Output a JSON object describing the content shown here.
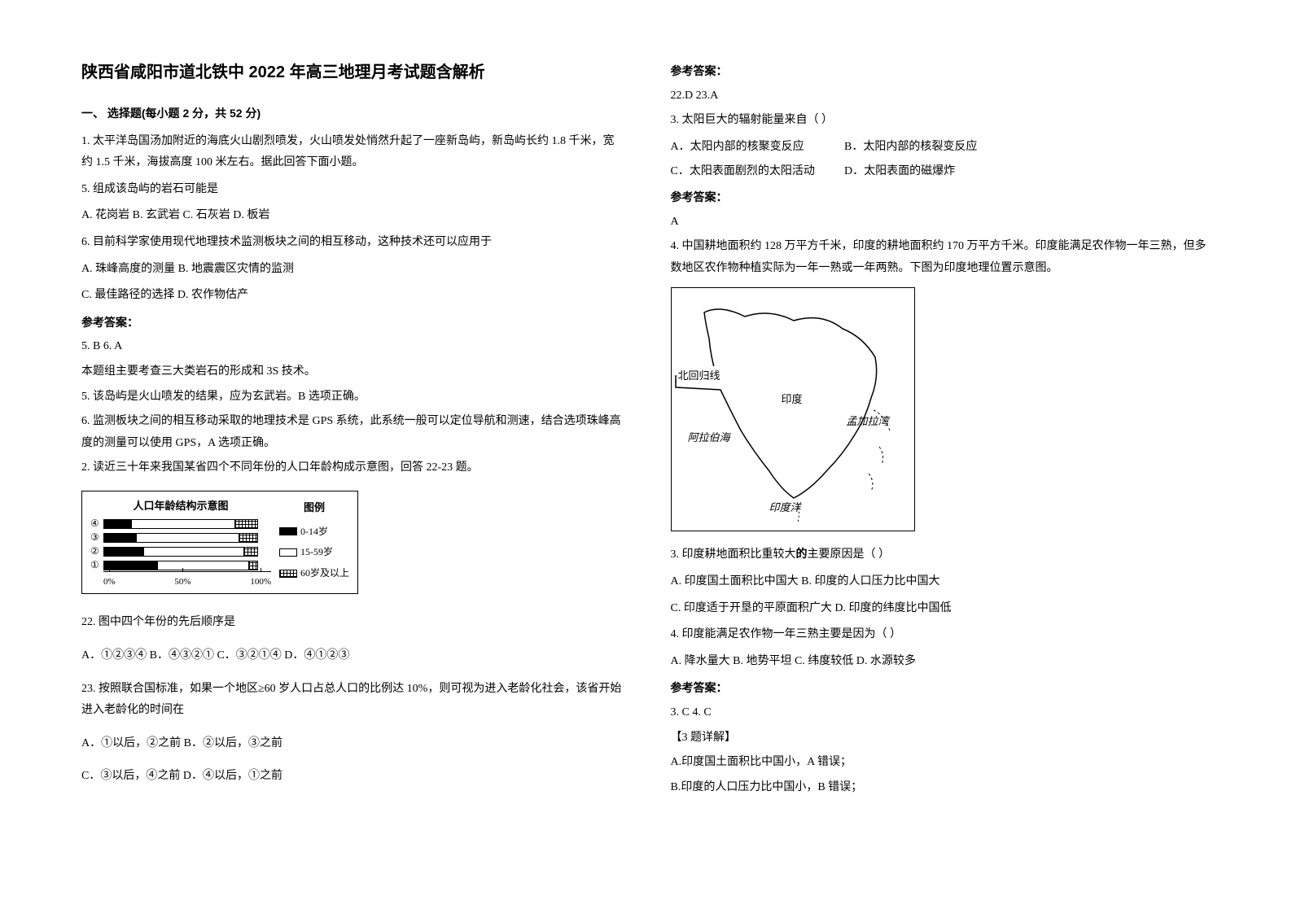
{
  "title": "陕西省咸阳市道北铁中 2022 年高三地理月考试题含解析",
  "section1": "一、 选择题(每小题 2 分，共 52 分)",
  "q1": {
    "stem": "1. 太平洋岛国汤加附近的海底火山剧烈喷发，火山喷发处悄然升起了一座新岛屿，新岛屿长约 1.8 千米，宽约 1.5 千米，海拔高度 100 米左右。据此回答下面小题。",
    "q5": "5.  组成该岛屿的岩石可能是",
    "q5_opts": "A. 花岗岩         B. 玄武岩         C. 石灰岩         D. 板岩",
    "q6": "6.  目前科学家使用现代地理技术监测板块之间的相互移动，这种技术还可以应用于",
    "q6a": "A. 珠峰高度的测量        B. 地震震区灾情的监测",
    "q6b": "C. 最佳路径的选择        D. 农作物估产",
    "ans_label": "参考答案：",
    "ans": "5. B        6. A",
    "exp1": "本题组主要考查三大类岩石的形成和 3S 技术。",
    "exp2": "5.  该岛屿是火山喷发的结果，应为玄武岩。B 选项正确。",
    "exp3": "6.  监测板块之间的相互移动采取的地理技术是 GPS 系统，此系统一般可以定位导航和测速，结合选项珠峰高度的测量可以使用 GPS，A 选项正确。"
  },
  "q2": {
    "stem": "2. 读近三十年来我国某省四个不同年份的人口年龄构成示意图，回答 22-23 题。",
    "chart": {
      "title": "人口年龄结构示意图",
      "legend_title": "图例",
      "legend": [
        "0-14岁",
        "15-59岁",
        "60岁及以上"
      ],
      "rows": [
        "④",
        "③",
        "②",
        "①"
      ],
      "axis": [
        "0%",
        "50%",
        "100%"
      ],
      "bars": [
        {
          "a": 18,
          "b": 67,
          "c": 15
        },
        {
          "a": 21,
          "b": 67,
          "c": 12
        },
        {
          "a": 26,
          "b": 65,
          "c": 9
        },
        {
          "a": 35,
          "b": 59,
          "c": 6
        }
      ],
      "colors": {
        "a": "#000000",
        "b": "#ffffff",
        "c_grid": "#000000",
        "border": "#000000"
      }
    },
    "q22": "22. 图中四个年份的先后顺序是",
    "q22_opts": "A．①②③④ B．④③②①    C．③②①④    D．④①②③",
    "q23": "23. 按照联合国标准，如果一个地区≥60 岁人口占总人口的比例达 10%，则可视为进入老龄化社会，该省开始进入老龄化的时间在",
    "q23a": "A．①以后，②之前          B．②以后，③之前",
    "q23b": "C．③以后，④之前          D．④以后，①之前"
  },
  "right": {
    "ans_label": "参考答案：",
    "a12": "22.D    23.A",
    "q3": {
      "stem": "3. 太阳巨大的辐射能量来自（          ）",
      "a": "A．太阳内部的核聚变反应",
      "b": "B．太阳内部的核裂变反应",
      "c": "C．太阳表面剧烈的太阳活动",
      "d": "D．太阳表面的磁爆炸",
      "ans": "A"
    },
    "q4": {
      "stem": "4. 中国耕地面积约 128 万平方千米，印度的耕地面积约 170 万平方千米。印度能满足农作物一年三熟，但多数地区农作物种植实际为一年一熟或一年两熟。下图为印度地理位置示意图。",
      "map": {
        "labels": {
          "tropic": "北回归线",
          "india": "印度",
          "bengal": "孟加拉湾",
          "arabian": "阿拉伯海",
          "ocean": "印度洋"
        }
      },
      "q3b": "3.  印度耕地面积比重较大的主要原因是（        ）",
      "q3b_opts1": "A. 印度国土面积比中国大    B. 印度的人口压力比中国大",
      "q3b_opts2": "C. 印度适于开垦的平原面积广大    D. 印度的纬度比中国低",
      "q4b": "4.  印度能满足农作物一年三熟主要是因为（        ）",
      "q4b_opts": "A. 降水量大   B. 地势平坦   C. 纬度较低   D. 水源较多",
      "ans": "3. C        4. C",
      "exp_h": "【3 题详解】",
      "exp1": "A.印度国土面积比中国小，A 错误；",
      "exp2": "B.印度的人口压力比中国小，B 错误；"
    }
  }
}
